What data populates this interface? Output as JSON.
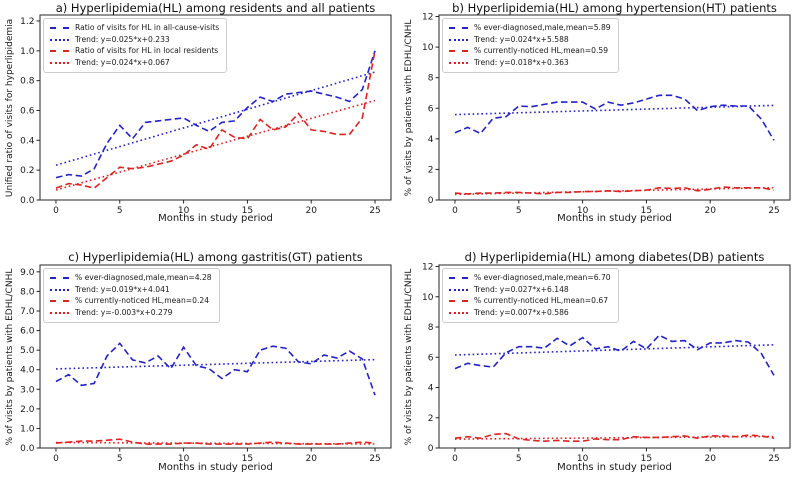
{
  "figure_background": "#ffffff",
  "colors": {
    "blue": "#2222c8",
    "red": "#dd2222",
    "axis": "#262626",
    "legend_border": "#cccccc"
  },
  "chart_data": [
    {
      "type": "line",
      "id": "a",
      "title": "a) Hyperlipidemia(HL) among residents and all patients",
      "xlabel": "Months in study period",
      "ylabel": "Unified ratio of visits for hyperlipidemia",
      "xlim": [
        -1.25,
        26.25
      ],
      "ylim": [
        0,
        1.24
      ],
      "xticks": [
        0,
        5,
        10,
        15,
        20,
        25
      ],
      "yticks": [
        0,
        0.2,
        0.4,
        0.6,
        0.8,
        1.0,
        1.2
      ],
      "ytick_labels": [
        "0.0",
        "0.2",
        "0.4",
        "0.6",
        "0.8",
        "1.0",
        "1.2"
      ],
      "legend_position": "upper-left",
      "series": [
        {
          "label": "Ratio of visits for HL in all-cause-visits",
          "color": "#2222c8",
          "dash": "dashed",
          "values": [
            0.15,
            0.17,
            0.16,
            0.21,
            0.38,
            0.5,
            0.41,
            0.52,
            0.53,
            0.54,
            0.55,
            0.5,
            0.46,
            0.52,
            0.53,
            0.62,
            0.69,
            0.66,
            0.71,
            0.72,
            0.73,
            0.71,
            0.69,
            0.66,
            0.74,
            1.0
          ]
        },
        {
          "label": "Trend: y=0.025*x+0.233",
          "color": "#2222c8",
          "dash": "dotted",
          "trend": {
            "slope": 0.025,
            "intercept": 0.233,
            "x0": 0,
            "x1": 25
          }
        },
        {
          "label": "Ratio of visits for HL in local residents",
          "color": "#dd2222",
          "dash": "dashed",
          "values": [
            0.08,
            0.11,
            0.1,
            0.08,
            0.15,
            0.22,
            0.21,
            0.22,
            0.24,
            0.26,
            0.3,
            0.37,
            0.34,
            0.47,
            0.42,
            0.41,
            0.54,
            0.47,
            0.49,
            0.58,
            0.47,
            0.46,
            0.44,
            0.44,
            0.55,
            1.0
          ]
        },
        {
          "label": "Trend: y=0.024*x+0.067",
          "color": "#dd2222",
          "dash": "dotted",
          "trend": {
            "slope": 0.024,
            "intercept": 0.067,
            "x0": 0,
            "x1": 25
          }
        }
      ]
    },
    {
      "type": "line",
      "id": "b",
      "title": "b) Hyperlipidemia(HL) among hypertension(HT) patients",
      "xlabel": "Months in study period",
      "ylabel": "% of visits by patients with EDHL/CNHL",
      "xlim": [
        -1.25,
        26.25
      ],
      "ylim": [
        0,
        12.1
      ],
      "xticks": [
        0,
        5,
        10,
        15,
        20,
        25
      ],
      "yticks": [
        0,
        2,
        4,
        6,
        8,
        10,
        12
      ],
      "ytick_labels": [
        "0",
        "2",
        "4",
        "6",
        "8",
        "10",
        "12"
      ],
      "legend_position": "upper-left",
      "series": [
        {
          "label": "% ever-diagnosed,male,mean=5.89",
          "color": "#2222c8",
          "dash": "dashed",
          "values": [
            4.4,
            4.75,
            4.35,
            5.35,
            5.45,
            6.15,
            6.1,
            6.25,
            6.4,
            6.4,
            6.4,
            5.95,
            6.4,
            6.2,
            6.35,
            6.6,
            6.85,
            6.85,
            6.6,
            5.85,
            6.1,
            6.2,
            6.15,
            6.15,
            5.3,
            3.9
          ]
        },
        {
          "label": "Trend: y=0.024*x+5.588",
          "color": "#2222c8",
          "dash": "dotted",
          "trend": {
            "slope": 0.024,
            "intercept": 5.588,
            "x0": 0,
            "x1": 25
          }
        },
        {
          "label": "% currently-noticed HL,mean=0.59",
          "color": "#dd2222",
          "dash": "dashed",
          "values": [
            0.45,
            0.4,
            0.45,
            0.45,
            0.5,
            0.5,
            0.45,
            0.4,
            0.5,
            0.5,
            0.55,
            0.55,
            0.6,
            0.55,
            0.6,
            0.65,
            0.8,
            0.75,
            0.8,
            0.6,
            0.7,
            0.85,
            0.8,
            0.8,
            0.8,
            0.65
          ]
        },
        {
          "label": "Trend: y=0.018*x+0.363",
          "color": "#dd2222",
          "dash": "dotted",
          "trend": {
            "slope": 0.018,
            "intercept": 0.363,
            "x0": 0,
            "x1": 25
          }
        }
      ]
    },
    {
      "type": "line",
      "id": "c",
      "title": "c) Hyperlipidemia(HL) among gastritis(GT) patients",
      "xlabel": "Months in study period",
      "ylabel": "% of visits by patients with EDHL/CNHL",
      "xlim": [
        -1.25,
        26.25
      ],
      "ylim": [
        0,
        9.35
      ],
      "xticks": [
        0,
        5,
        10,
        15,
        20,
        25
      ],
      "yticks": [
        0,
        1,
        2,
        3,
        4,
        5,
        6,
        7,
        8,
        9
      ],
      "ytick_labels": [
        "0.0",
        "1.0",
        "2.0",
        "3.0",
        "4.0",
        "5.0",
        "6.0",
        "7.0",
        "8.0",
        "9.0"
      ],
      "legend_position": "upper-left",
      "series": [
        {
          "label": "% ever-diagnosed,male,mean=4.28",
          "color": "#2222c8",
          "dash": "dashed",
          "values": [
            3.4,
            3.75,
            3.2,
            3.3,
            4.7,
            5.35,
            4.5,
            4.35,
            4.7,
            4.05,
            5.15,
            4.2,
            4.05,
            3.55,
            4.0,
            3.9,
            5.0,
            5.2,
            5.1,
            4.4,
            4.3,
            4.75,
            4.6,
            4.95,
            4.55,
            2.7
          ]
        },
        {
          "label": "Trend: y=0.019*x+4.041",
          "color": "#2222c8",
          "dash": "dotted",
          "trend": {
            "slope": 0.019,
            "intercept": 4.041,
            "x0": 0,
            "x1": 25
          }
        },
        {
          "label": "% currently-noticed HL,mean=0.24",
          "color": "#dd2222",
          "dash": "dashed",
          "values": [
            0.25,
            0.3,
            0.35,
            0.35,
            0.4,
            0.45,
            0.3,
            0.2,
            0.2,
            0.2,
            0.25,
            0.25,
            0.2,
            0.2,
            0.2,
            0.2,
            0.25,
            0.3,
            0.25,
            0.2,
            0.2,
            0.2,
            0.2,
            0.25,
            0.3,
            0.25
          ]
        },
        {
          "label": "Trend: y=-0.003*x+0.279",
          "color": "#dd2222",
          "dash": "dotted",
          "trend": {
            "slope": -0.003,
            "intercept": 0.279,
            "x0": 0,
            "x1": 25
          }
        }
      ]
    },
    {
      "type": "line",
      "id": "d",
      "title": "d) Hyperlipidemia(HL) among diabetes(DB) patients",
      "xlabel": "Months in study period",
      "ylabel": "% of visits by patients with EDHL/CNHL",
      "xlim": [
        -1.25,
        26.25
      ],
      "ylim": [
        0,
        12.1
      ],
      "xticks": [
        0,
        5,
        10,
        15,
        20,
        25
      ],
      "yticks": [
        0,
        2,
        4,
        6,
        8,
        10,
        12
      ],
      "ytick_labels": [
        "0",
        "2",
        "4",
        "6",
        "8",
        "10",
        "12"
      ],
      "legend_position": "upper-left",
      "series": [
        {
          "label": "% ever-diagnosed,male,mean=6.70",
          "color": "#2222c8",
          "dash": "dashed",
          "values": [
            5.25,
            5.6,
            5.45,
            5.35,
            6.3,
            6.7,
            6.7,
            6.6,
            7.25,
            6.75,
            7.3,
            6.55,
            6.7,
            6.4,
            7.05,
            6.55,
            7.45,
            7.05,
            7.1,
            6.5,
            6.95,
            6.95,
            7.1,
            7.0,
            6.25,
            4.8
          ]
        },
        {
          "label": "Trend: y=0.027*x+6.148",
          "color": "#2222c8",
          "dash": "dotted",
          "trend": {
            "slope": 0.027,
            "intercept": 6.148,
            "x0": 0,
            "x1": 25
          }
        },
        {
          "label": "% currently-noticed HL,mean=0.67",
          "color": "#dd2222",
          "dash": "dashed",
          "values": [
            0.65,
            0.75,
            0.65,
            0.9,
            0.95,
            0.6,
            0.5,
            0.45,
            0.5,
            0.45,
            0.45,
            0.6,
            0.55,
            0.55,
            0.75,
            0.7,
            0.7,
            0.75,
            0.8,
            0.65,
            0.8,
            0.8,
            0.75,
            0.85,
            0.8,
            0.65
          ]
        },
        {
          "label": "Trend: y=0.007*x+0.586",
          "color": "#dd2222",
          "dash": "dotted",
          "trend": {
            "slope": 0.007,
            "intercept": 0.586,
            "x0": 0,
            "x1": 25
          }
        }
      ]
    }
  ]
}
